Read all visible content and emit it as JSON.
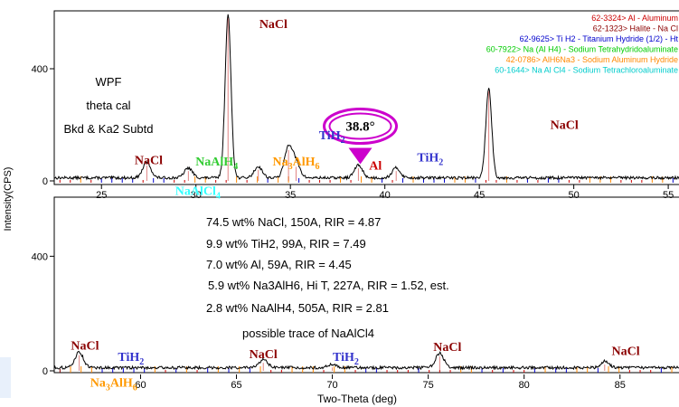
{
  "chart_data": {
    "type": "line",
    "ylabel": "Intensity(CPS)",
    "xlabel": "Two-Theta (deg)",
    "grid": false,
    "panels": [
      {
        "id": "top",
        "xlim": [
          22.5,
          56
        ],
        "ylim": [
          0,
          600
        ],
        "xticks": [
          25,
          30,
          35,
          40,
          45,
          50,
          55
        ],
        "yticks": [
          0,
          400
        ],
        "notes": [
          "WPF",
          "theta cal",
          "Bkd & Ka2 Subtd"
        ],
        "peaks": [
          {
            "x": 27.4,
            "h": 55
          },
          {
            "x": 29.6,
            "h": 35
          },
          {
            "x": 31.7,
            "h": 580
          },
          {
            "x": 33.3,
            "h": 40
          },
          {
            "x": 34.9,
            "h": 110
          },
          {
            "x": 35.3,
            "h": 50
          },
          {
            "x": 38.6,
            "h": 45
          },
          {
            "x": 40.6,
            "h": 35
          },
          {
            "x": 45.5,
            "h": 320
          }
        ],
        "labels": [
          {
            "text": "NaCl",
            "x": 27.5,
            "y": 60,
            "color": "#8b0000"
          },
          {
            "text": "NaAlH",
            "sub": "4",
            "x": 31.1,
            "y": 55,
            "color": "#33cc33"
          },
          {
            "text": "Na",
            "sub": "3",
            "text2": "AlH",
            "sub2": "6",
            "x": 35.3,
            "y": 55,
            "color": "#ff9900"
          },
          {
            "text": "TiH",
            "sub": "2",
            "x": 37.2,
            "y": 148,
            "color": "#3333cc"
          },
          {
            "text": "Al",
            "x": 39.5,
            "y": 40,
            "color": "#cc0000"
          },
          {
            "text": "TiH",
            "sub": "2",
            "x": 42.4,
            "y": 70,
            "color": "#3333cc"
          },
          {
            "text": "NaCl",
            "x": 34.1,
            "y": 545,
            "color": "#8b0000"
          },
          {
            "text": "NaCl",
            "x": 49.5,
            "y": 185,
            "color": "#8b0000"
          },
          {
            "text": "NaAlCl",
            "sub": "4",
            "x": 30.1,
            "y": -50,
            "color": "#33ffff"
          }
        ],
        "callout": {
          "text": "38.8°",
          "x": 38.7,
          "y": 195
        },
        "legend": [
          {
            "text": "62-3324> Al - Aluminum",
            "color": "#cc0000"
          },
          {
            "text": "62-1323> Halite - Na Cl",
            "color": "#8b0000"
          },
          {
            "text": "62-9625> Ti H2 - Titanium Hydride (1/2) - Ht",
            "color": "#0000cc"
          },
          {
            "text": "60-7922> Na (Al H4) - Sodium Tetrahydridoaluminate",
            "color": "#00cc00"
          },
          {
            "text": "42-0786> AlH6Na3 - Sodium Aluminum Hydride",
            "color": "#ff8800"
          },
          {
            "text": "60-1644> Na Al Cl4 - Sodium Tetrachloroaluminate",
            "color": "#00cccc"
          }
        ]
      },
      {
        "id": "bottom",
        "xlim": [
          55.5,
          88.5
        ],
        "ylim": [
          0,
          600
        ],
        "xticks": [
          60,
          65,
          70,
          75,
          80,
          85
        ],
        "yticks": [
          0,
          400
        ],
        "peaks": [
          {
            "x": 56.8,
            "h": 55
          },
          {
            "x": 66.4,
            "h": 28
          },
          {
            "x": 70.0,
            "h": 12
          },
          {
            "x": 75.6,
            "h": 50
          },
          {
            "x": 84.2,
            "h": 22
          }
        ],
        "labels": [
          {
            "text": "NaCl",
            "x": 57.1,
            "y": 75,
            "color": "#8b0000"
          },
          {
            "text": "TiH",
            "sub": "2",
            "x": 59.5,
            "y": 35,
            "color": "#3333cc"
          },
          {
            "text": "NaCl",
            "x": 66.4,
            "y": 45,
            "color": "#8b0000"
          },
          {
            "text": "TiH",
            "sub": "2",
            "x": 70.7,
            "y": 35,
            "color": "#3333cc"
          },
          {
            "text": "NaCl",
            "x": 76.0,
            "y": 70,
            "color": "#8b0000"
          },
          {
            "text": "NaCl",
            "x": 85.3,
            "y": 55,
            "color": "#8b0000"
          },
          {
            "text": "Na",
            "sub": "3",
            "text2": "AlH",
            "sub2": "6",
            "x": 58.6,
            "y": -55,
            "color": "#ff9900"
          }
        ],
        "notes": [
          "74.5 wt% NaCl, 150A, RIR = 4.87",
          "9.9 wt% TiH2, 99A, RIR = 7.49",
          "7.0 wt% Al, 59A, RIR = 4.45",
          "5.9 wt% Na3AlH6, Hi T, 227A, RIR = 1.52, est.",
          "2.8 wt% NaAlH4, 505A, RIR = 2.81",
          "possible trace of NaAlCl4"
        ]
      }
    ]
  }
}
